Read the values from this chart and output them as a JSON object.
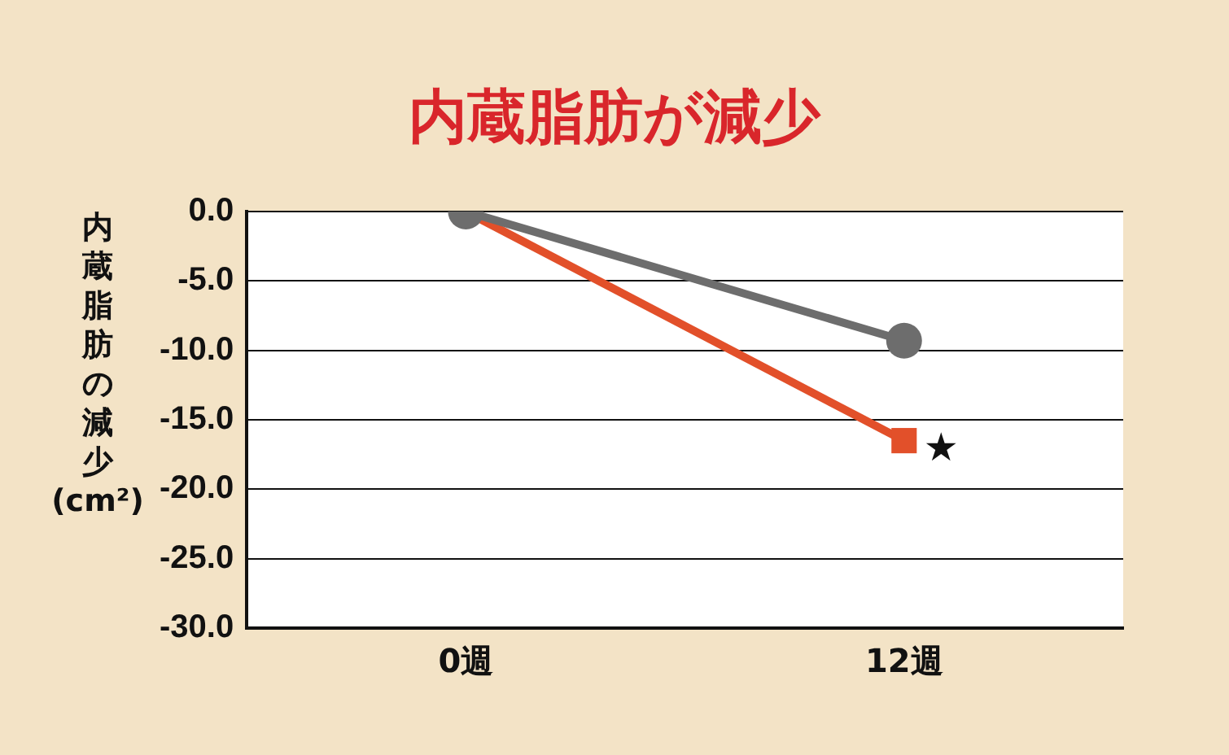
{
  "chart_data": {
    "type": "line",
    "title": "内蔵脂肪が減少",
    "ylabel": "内蔵脂肪の減少(cm²)",
    "categories": [
      "0週",
      "12週"
    ],
    "series": [
      {
        "color": "#6d6d6d",
        "marker": "circle",
        "values": [
          0,
          -9.3
        ]
      },
      {
        "color": "#e2502a",
        "marker": "square",
        "values": [
          0,
          -16.5
        ]
      }
    ],
    "ylim": [
      -30,
      0
    ],
    "yticks": [
      {
        "value": 0,
        "label": "0.0"
      },
      {
        "value": -5,
        "label": "-5.0"
      },
      {
        "value": -10,
        "label": "-10.0"
      },
      {
        "value": -15,
        "label": "-15.0"
      },
      {
        "value": -20,
        "label": "-20.0"
      },
      {
        "value": -25,
        "label": "-25.0"
      },
      {
        "value": -30,
        "label": "-30.0"
      }
    ],
    "annotations": [
      {
        "text": "★",
        "x": "12週",
        "y": -16.5
      }
    ],
    "grid": "y",
    "legend": false
  }
}
